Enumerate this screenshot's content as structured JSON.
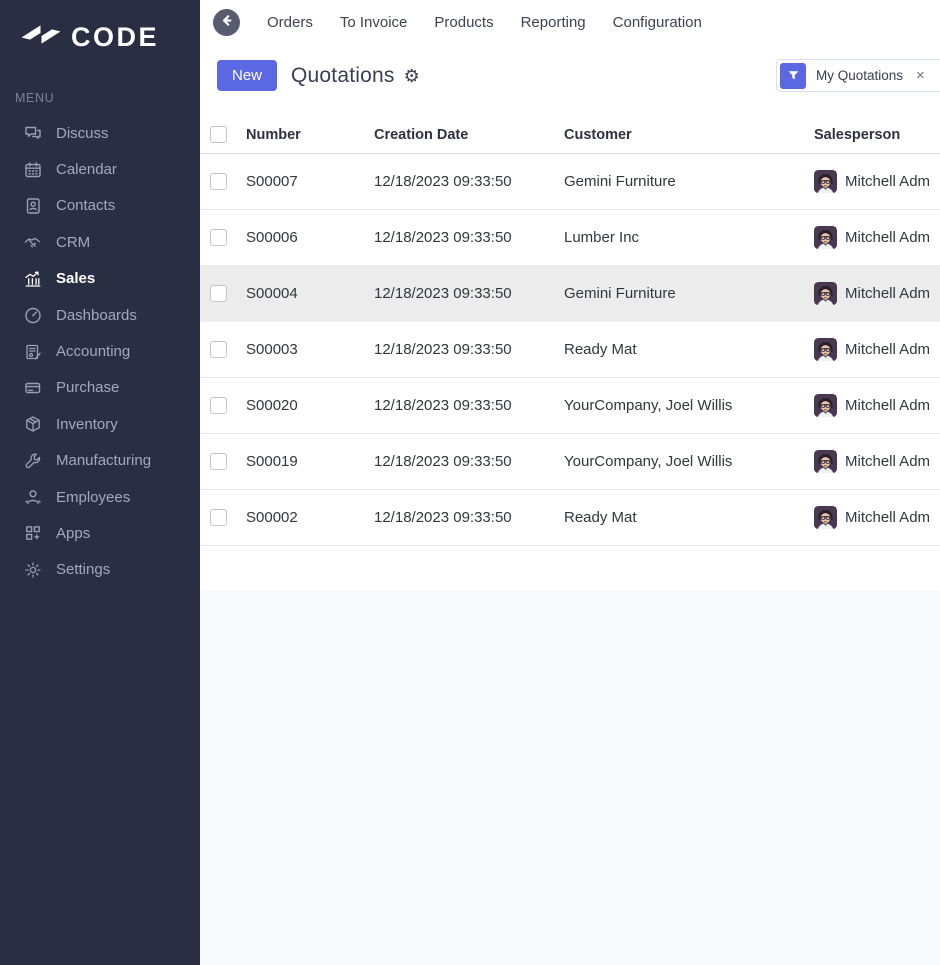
{
  "brand": {
    "logo_text": "CODE",
    "logo_icon": "code-logo-icon"
  },
  "sidebar": {
    "menu_label": "MENU",
    "items": [
      {
        "label": "Discuss",
        "icon": "discuss-icon",
        "active": false
      },
      {
        "label": "Calendar",
        "icon": "calendar-icon",
        "active": false
      },
      {
        "label": "Contacts",
        "icon": "contacts-icon",
        "active": false
      },
      {
        "label": "CRM",
        "icon": "crm-icon",
        "active": false
      },
      {
        "label": "Sales",
        "icon": "sales-icon",
        "active": true
      },
      {
        "label": "Dashboards",
        "icon": "dashboards-icon",
        "active": false
      },
      {
        "label": "Accounting",
        "icon": "accounting-icon",
        "active": false
      },
      {
        "label": "Purchase",
        "icon": "purchase-icon",
        "active": false
      },
      {
        "label": "Inventory",
        "icon": "inventory-icon",
        "active": false
      },
      {
        "label": "Manufacturing",
        "icon": "manufacturing-icon",
        "active": false
      },
      {
        "label": "Employees",
        "icon": "employees-icon",
        "active": false
      },
      {
        "label": "Apps",
        "icon": "apps-icon",
        "active": false
      },
      {
        "label": "Settings",
        "icon": "settings-icon",
        "active": false
      }
    ]
  },
  "topnav": {
    "back_icon": "back-arrow-icon",
    "items": [
      {
        "label": "Orders"
      },
      {
        "label": "To Invoice"
      },
      {
        "label": "Products"
      },
      {
        "label": "Reporting"
      },
      {
        "label": "Configuration"
      }
    ]
  },
  "control_panel": {
    "new_button_label": "New",
    "title": "Quotations",
    "settings_icon": "gear-icon",
    "filter_chip": {
      "icon": "filter-funnel-icon",
      "label": "My Quotations",
      "remove_label": "×"
    }
  },
  "table": {
    "columns": [
      "Number",
      "Creation Date",
      "Customer",
      "Salesperson"
    ],
    "rows": [
      {
        "number": "S00007",
        "creation_date": "12/18/2023 09:33:50",
        "customer": "Gemini Furniture",
        "salesperson": "Mitchell Adm",
        "highlighted": false
      },
      {
        "number": "S00006",
        "creation_date": "12/18/2023 09:33:50",
        "customer": "Lumber Inc",
        "salesperson": "Mitchell Adm",
        "highlighted": false
      },
      {
        "number": "S00004",
        "creation_date": "12/18/2023 09:33:50",
        "customer": "Gemini Furniture",
        "salesperson": "Mitchell Adm",
        "highlighted": true
      },
      {
        "number": "S00003",
        "creation_date": "12/18/2023 09:33:50",
        "customer": "Ready Mat",
        "salesperson": "Mitchell Adm",
        "highlighted": false
      },
      {
        "number": "S00020",
        "creation_date": "12/18/2023 09:33:50",
        "customer": "YourCompany, Joel Willis",
        "salesperson": "Mitchell Adm",
        "highlighted": false
      },
      {
        "number": "S00019",
        "creation_date": "12/18/2023 09:33:50",
        "customer": "YourCompany, Joel Willis",
        "salesperson": "Mitchell Adm",
        "highlighted": false
      },
      {
        "number": "S00002",
        "creation_date": "12/18/2023 09:33:50",
        "customer": "Ready Mat",
        "salesperson": "Mitchell Adm",
        "highlighted": false
      }
    ],
    "salesperson_avatar_icon": "avatar-mitchell"
  },
  "colors": {
    "accent": "#5b68e4",
    "sidebar_bg": "#2a2e42",
    "row_highlight": "#ececec",
    "canvas": "#f8f9fb"
  }
}
